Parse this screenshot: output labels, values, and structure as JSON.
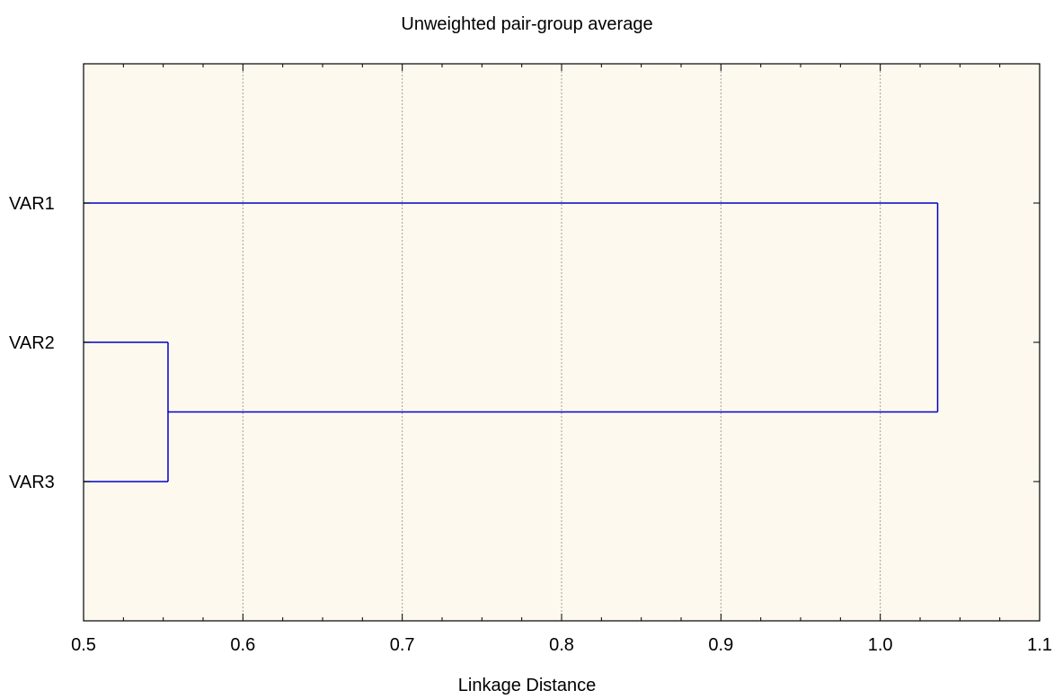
{
  "chart_data": {
    "type": "dendrogram",
    "title": "Unweighted pair-group average",
    "xlabel": "Linkage Distance",
    "ylabel": "",
    "xlim": [
      0.5,
      1.1
    ],
    "x_ticks": [
      "0.5",
      "0.6",
      "0.7",
      "0.8",
      "0.9",
      "1.0",
      "1.1"
    ],
    "x_tick_values": [
      0.5,
      0.6,
      0.7,
      0.8,
      0.9,
      1.0,
      1.1
    ],
    "minor_tick_step": 0.025,
    "grid": "vertical-dotted",
    "leaves": [
      "VAR1",
      "VAR2",
      "VAR3"
    ],
    "merges": [
      {
        "children": [
          "VAR2",
          "VAR3"
        ],
        "distance": 0.553
      },
      {
        "children": [
          "VAR1",
          "VAR2+VAR3"
        ],
        "distance": 1.036
      }
    ],
    "colors": {
      "background": "#fdf9ee",
      "links": "#0000cc",
      "grid": "#a0a0a0",
      "axis": "#000000"
    }
  }
}
